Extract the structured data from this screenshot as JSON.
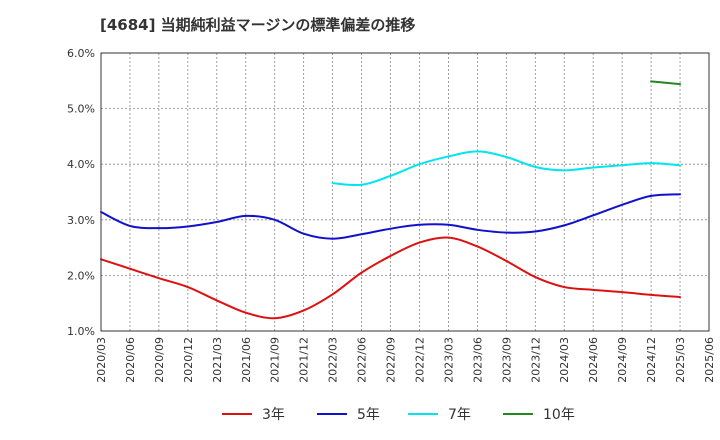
{
  "chart_data": {
    "type": "line",
    "title": "[4684]  当期純利益マージンの標準偏差の推移",
    "xlabel": "",
    "ylabel": "",
    "ylim": [
      1.0,
      6.0
    ],
    "y_ticks": [
      "1.0%",
      "2.0%",
      "3.0%",
      "4.0%",
      "5.0%",
      "6.0%"
    ],
    "y_tick_values": [
      1.0,
      2.0,
      3.0,
      4.0,
      5.0,
      6.0
    ],
    "x_labels": [
      "2020/03",
      "2020/06",
      "2020/09",
      "2020/12",
      "2021/03",
      "2021/06",
      "2021/09",
      "2021/12",
      "2022/03",
      "2022/06",
      "2022/09",
      "2022/12",
      "2023/03",
      "2023/06",
      "2023/09",
      "2023/12",
      "2024/03",
      "2024/06",
      "2024/09",
      "2024/12",
      "2025/03",
      "2025/06"
    ],
    "grid": true,
    "legend_position": "bottom",
    "series": [
      {
        "name": "3年",
        "color": "#dd1111",
        "points": [
          [
            "2020/03",
            2.29
          ],
          [
            "2020/06",
            2.12
          ],
          [
            "2020/09",
            1.95
          ],
          [
            "2020/12",
            1.79
          ],
          [
            "2021/03",
            1.55
          ],
          [
            "2021/06",
            1.33
          ],
          [
            "2021/09",
            1.23
          ],
          [
            "2021/12",
            1.37
          ],
          [
            "2022/03",
            1.66
          ],
          [
            "2022/06",
            2.05
          ],
          [
            "2022/09",
            2.35
          ],
          [
            "2022/12",
            2.59
          ],
          [
            "2023/03",
            2.68
          ],
          [
            "2023/06",
            2.52
          ],
          [
            "2023/09",
            2.26
          ],
          [
            "2023/12",
            1.97
          ],
          [
            "2024/03",
            1.79
          ],
          [
            "2024/06",
            1.74
          ],
          [
            "2024/09",
            1.7
          ],
          [
            "2024/12",
            1.65
          ],
          [
            "2025/03",
            1.61
          ]
        ]
      },
      {
        "name": "5年",
        "color": "#1111cc",
        "points": [
          [
            "2020/03",
            3.14
          ],
          [
            "2020/06",
            2.89
          ],
          [
            "2020/09",
            2.85
          ],
          [
            "2020/12",
            2.88
          ],
          [
            "2021/03",
            2.96
          ],
          [
            "2021/06",
            3.07
          ],
          [
            "2021/09",
            3.0
          ],
          [
            "2021/12",
            2.75
          ],
          [
            "2022/03",
            2.66
          ],
          [
            "2022/06",
            2.74
          ],
          [
            "2022/09",
            2.84
          ],
          [
            "2022/12",
            2.91
          ],
          [
            "2023/03",
            2.91
          ],
          [
            "2023/06",
            2.82
          ],
          [
            "2023/09",
            2.77
          ],
          [
            "2023/12",
            2.79
          ],
          [
            "2024/03",
            2.9
          ],
          [
            "2024/06",
            3.08
          ],
          [
            "2024/09",
            3.27
          ],
          [
            "2024/12",
            3.43
          ],
          [
            "2025/03",
            3.46
          ]
        ]
      },
      {
        "name": "7年",
        "color": "#00e5ee",
        "points": [
          [
            "2022/03",
            3.66
          ],
          [
            "2022/06",
            3.63
          ],
          [
            "2022/09",
            3.79
          ],
          [
            "2022/12",
            4.0
          ],
          [
            "2023/03",
            4.14
          ],
          [
            "2023/06",
            4.23
          ],
          [
            "2023/09",
            4.13
          ],
          [
            "2023/12",
            3.95
          ],
          [
            "2024/03",
            3.89
          ],
          [
            "2024/06",
            3.94
          ],
          [
            "2024/09",
            3.98
          ],
          [
            "2024/12",
            4.02
          ],
          [
            "2025/03",
            3.98
          ]
        ]
      },
      {
        "name": "10年",
        "color": "#228822",
        "points": [
          [
            "2024/12",
            5.49
          ],
          [
            "2025/03",
            5.44
          ]
        ]
      }
    ]
  }
}
